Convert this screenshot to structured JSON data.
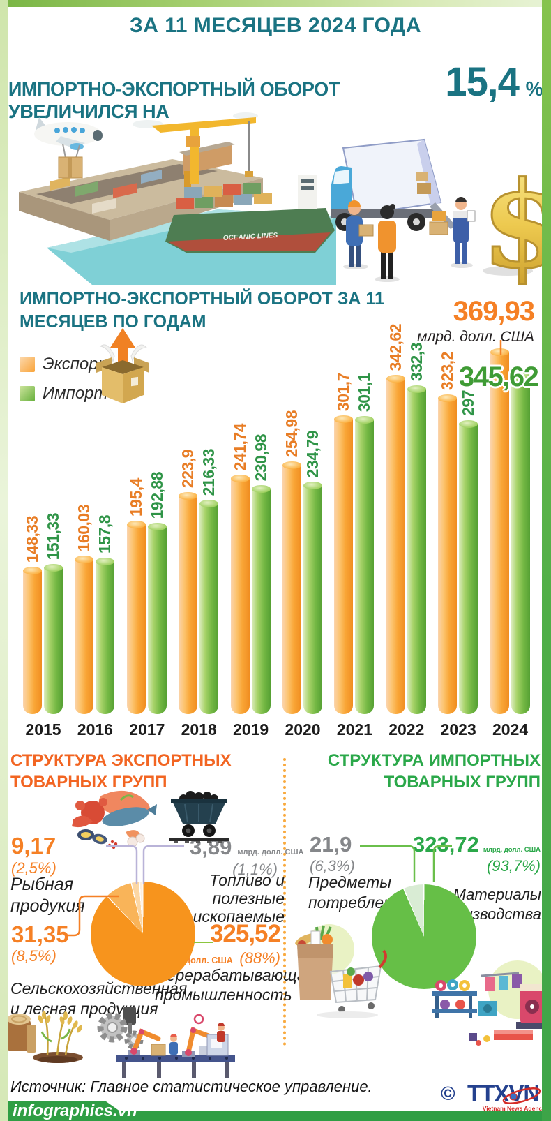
{
  "colors": {
    "teal": "#1a7382",
    "orange": "#f58025",
    "green": "#3fae49",
    "export_title": "#f26522",
    "import_title": "#2ba84a",
    "gray_value": "#85878a",
    "bar_export": "#f9a637",
    "bar_import": "#74b844"
  },
  "header": {
    "kicker": "ЗА 11 МЕСЯЦЕВ 2024 ГОДА",
    "title": "ИМПОРТНО-ЭКСПОРТНЫЙ ОБОРОТ УВЕЛИЧИЛСЯ НА",
    "highlight": "15,4",
    "percent_sign": "%"
  },
  "illustration": {
    "ship_name": "OCEANIC LINES"
  },
  "trade_chart": {
    "title_line1": "ИМПОРТНО-ЭКСПОРТНЫЙ ОБОРОТ ЗА 11",
    "title_line2": "МЕСЯЦЕВ ПО ГОДАМ",
    "callout_export_value": "369,93",
    "callout_unit": "млрд. долл. США",
    "callout_import_value": "345,62",
    "legend": [
      {
        "label": "Экспорт"
      },
      {
        "label": "Импорт"
      }
    ]
  },
  "chart_data": [
    {
      "type": "bar",
      "title": "ИМПОРТНО-ЭКСПОРТНЫЙ ОБОРОТ ЗА 11 МЕСЯЦЕВ ПО ГОДАМ",
      "unit": "млрд. долл. США",
      "categories": [
        "2015",
        "2016",
        "2017",
        "2018",
        "2019",
        "2020",
        "2021",
        "2022",
        "2023",
        "2024"
      ],
      "series": [
        {
          "name": "Экспорт",
          "values": [
            148.33,
            160.03,
            195.4,
            223.9,
            241.74,
            254.98,
            301.7,
            342.62,
            323.2,
            369.93
          ],
          "display": [
            "148,33",
            "160,03",
            "195,4",
            "223,9",
            "241,74",
            "254,98",
            "301,7",
            "342,62",
            "323,2",
            "369,93"
          ]
        },
        {
          "name": "Импорт",
          "values": [
            151.33,
            157.8,
            192.88,
            216.33,
            230.98,
            234.79,
            301.1,
            332.3,
            297,
            345.62
          ],
          "display": [
            "151,33",
            "157,8",
            "192,88",
            "216,33",
            "230,98",
            "234,79",
            "301,1",
            "332,3",
            "297",
            "345,62"
          ]
        }
      ],
      "ylim": [
        0,
        391
      ],
      "grid": false,
      "legend_position": "left"
    },
    {
      "type": "pie",
      "title": "СТРУКТУРА ЭКСПОРТНЫХ ТОВАРНЫХ ГРУПП",
      "unit": "млрд. долл. США",
      "start_deg": 0,
      "gap_deg": 1.2,
      "slices": [
        {
          "label": "Перерабатывающая промышленность",
          "value": 325.52,
          "percent": 88,
          "color": "#f7941d"
        },
        {
          "label": "Сельскохозяйственная и лесная продукция",
          "value": 31.35,
          "percent": 8.5,
          "color": "#f9b459"
        },
        {
          "label": "Рыбная продукия",
          "value": 9.17,
          "percent": 2.5,
          "color": "#fcd7a4"
        },
        {
          "label": "Топливо и полезные ископаемые",
          "value": 3.89,
          "percent": 1.1,
          "color": "#fdeedd"
        }
      ]
    },
    {
      "type": "pie",
      "title": "СТРУКТУРА ИМПОРТНЫХ ТОВАРНЫХ ГРУПП",
      "unit": "млрд. долл. США",
      "start_deg": 337,
      "gap_deg": 1.2,
      "slices": [
        {
          "label": "Предметы потребления",
          "value": 21.9,
          "percent": 6.3,
          "color": "#d9ecd4"
        },
        {
          "label": "Материалы производства",
          "value": 323.72,
          "percent": 93.7,
          "color": "#66bf47"
        }
      ]
    }
  ],
  "export_structure": {
    "title_line1": "СТРУКТУРА ЭКСПОРТНЫХ",
    "title_line2": "ТОВАРНЫХ ГРУПП",
    "fish": {
      "value": "9,17",
      "percent": "(2,5%)",
      "label": "Рыбная продукия"
    },
    "agri": {
      "value": "31,35",
      "percent": "(8,5%)",
      "label": "Сельскохозяйственная и лесная продукция"
    },
    "fuel": {
      "value": "3,89",
      "unit": "млрд. долл. США",
      "percent": "(1,1%)",
      "label": "Топливо и полезные ископаемые"
    },
    "industry": {
      "value": "325,52",
      "unit": "млрд. долл. США",
      "percent": "(88%)",
      "label": "Перерабатывающая промышленность"
    }
  },
  "import_structure": {
    "title_line1": "СТРУКТУРА ИМПОРТНЫХ",
    "title_line2": "ТОВАРНЫХ ГРУПП",
    "consumer": {
      "value": "21,9",
      "percent": "(6,3%)",
      "label": "Предметы потребления"
    },
    "materials": {
      "value": "323,72",
      "unit": "млрд. долл. США",
      "percent": "(93,7%)",
      "label": "Материалы производства"
    }
  },
  "footer": {
    "source": "Источник: Главное статистическое управление.",
    "copyright": "©",
    "agency": "TTXVN",
    "agency_sub": "Vietnam News Agency",
    "site": "infographics.vn"
  }
}
